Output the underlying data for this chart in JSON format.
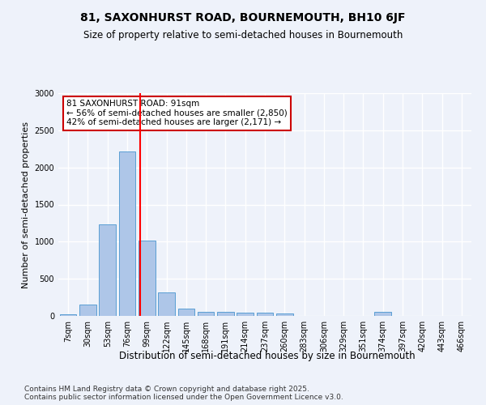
{
  "title_line1": "81, SAXONHURST ROAD, BOURNEMOUTH, BH10 6JF",
  "title_line2": "Size of property relative to semi-detached houses in Bournemouth",
  "xlabel": "Distribution of semi-detached houses by size in Bournemouth",
  "ylabel": "Number of semi-detached properties",
  "categories": [
    "7sqm",
    "30sqm",
    "53sqm",
    "76sqm",
    "99sqm",
    "122sqm",
    "145sqm",
    "168sqm",
    "191sqm",
    "214sqm",
    "237sqm",
    "260sqm",
    "283sqm",
    "306sqm",
    "329sqm",
    "351sqm",
    "374sqm",
    "397sqm",
    "420sqm",
    "443sqm",
    "466sqm"
  ],
  "values": [
    20,
    150,
    1230,
    2220,
    1020,
    320,
    100,
    60,
    55,
    40,
    40,
    30,
    5,
    5,
    5,
    5,
    50,
    5,
    5,
    5,
    5
  ],
  "bar_color": "#aec6e8",
  "bar_edge_color": "#5a9fd4",
  "red_line_x": 3.65,
  "annotation_text": "81 SAXONHURST ROAD: 91sqm\n← 56% of semi-detached houses are smaller (2,850)\n42% of semi-detached houses are larger (2,171) →",
  "annotation_box_color": "#ffffff",
  "annotation_border_color": "#cc0000",
  "ylim": [
    0,
    3000
  ],
  "yticks": [
    0,
    500,
    1000,
    1500,
    2000,
    2500,
    3000
  ],
  "background_color": "#eef2fa",
  "grid_color": "#ffffff",
  "footnote": "Contains HM Land Registry data © Crown copyright and database right 2025.\nContains public sector information licensed under the Open Government Licence v3.0."
}
